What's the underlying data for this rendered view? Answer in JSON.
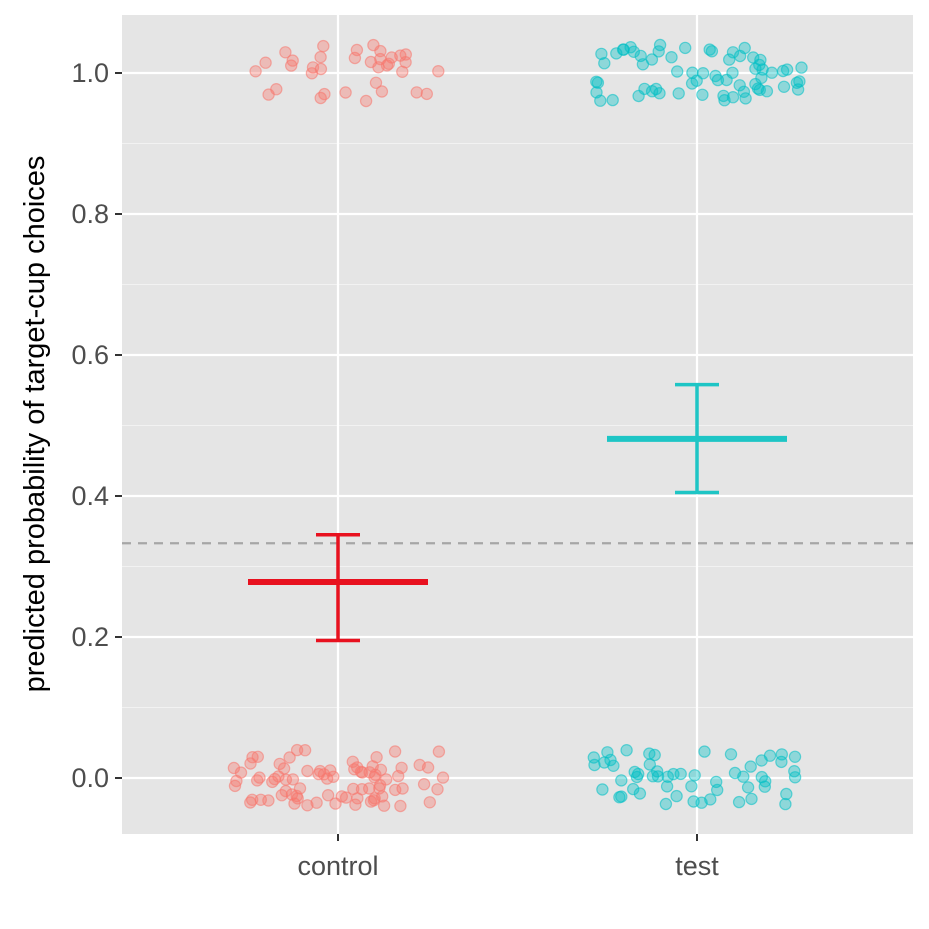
{
  "chart_data": {
    "type": "scatter",
    "title": "",
    "xlabel": "",
    "ylabel": "predicted probability of target-cup choices",
    "categories": [
      "control",
      "test"
    ],
    "ylim": [
      -0.08,
      1.08
    ],
    "yticks": [
      0.0,
      0.2,
      0.4,
      0.6,
      0.8,
      1.0
    ],
    "ytick_labels": [
      "0.0",
      "0.2",
      "0.4",
      "0.6",
      "0.8",
      "1.0"
    ],
    "grid": true,
    "legend": "none",
    "reference_line": {
      "y": 0.333,
      "style": "dashed",
      "color": "#a6a6a6"
    },
    "series": [
      {
        "category": "control",
        "color": "#e8111f",
        "point_color": "#f8766d",
        "estimate": 0.278,
        "ci_lower": 0.195,
        "ci_upper": 0.345,
        "points_at_1": 35,
        "points_at_0": 80
      },
      {
        "category": "test",
        "color": "#1ec5c5",
        "point_color": "#00bfc4",
        "estimate": 0.481,
        "ci_lower": 0.405,
        "ci_upper": 0.558,
        "points_at_1": 65,
        "points_at_0": 55
      }
    ]
  }
}
